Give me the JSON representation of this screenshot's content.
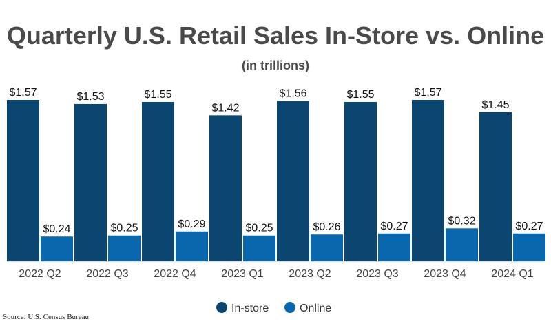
{
  "title": "Quarterly U.S. Retail Sales In-Store vs. Online",
  "subtitle": "(in trillions)",
  "source": "Source: U.S. Census Bureau",
  "chart_data": {
    "type": "bar",
    "title": "Quarterly U.S. Retail Sales In-Store vs. Online",
    "subtitle": "(in trillions)",
    "categories": [
      "2022 Q2",
      "2022 Q3",
      "2022 Q4",
      "2023 Q1",
      "2023 Q2",
      "2023 Q3",
      "2023 Q4",
      "2024 Q1"
    ],
    "series": [
      {
        "name": "In-store",
        "color": "#0a4670",
        "values": [
          1.57,
          1.53,
          1.55,
          1.42,
          1.56,
          1.55,
          1.57,
          1.45
        ],
        "labels": [
          "$1.57",
          "$1.53",
          "$1.55",
          "$1.42",
          "$1.56",
          "$1.55",
          "$1.57",
          "$1.45"
        ]
      },
      {
        "name": "Online",
        "color": "#0867ad",
        "values": [
          0.24,
          0.25,
          0.29,
          0.25,
          0.26,
          0.27,
          0.32,
          0.27
        ],
        "labels": [
          "$0.24",
          "$0.25",
          "$0.29",
          "$0.25",
          "$0.26",
          "$0.27",
          "$0.32",
          "$0.27"
        ]
      }
    ],
    "ylim": [
      0,
      1.57
    ],
    "grid": false,
    "legend_position": "bottom-center"
  }
}
